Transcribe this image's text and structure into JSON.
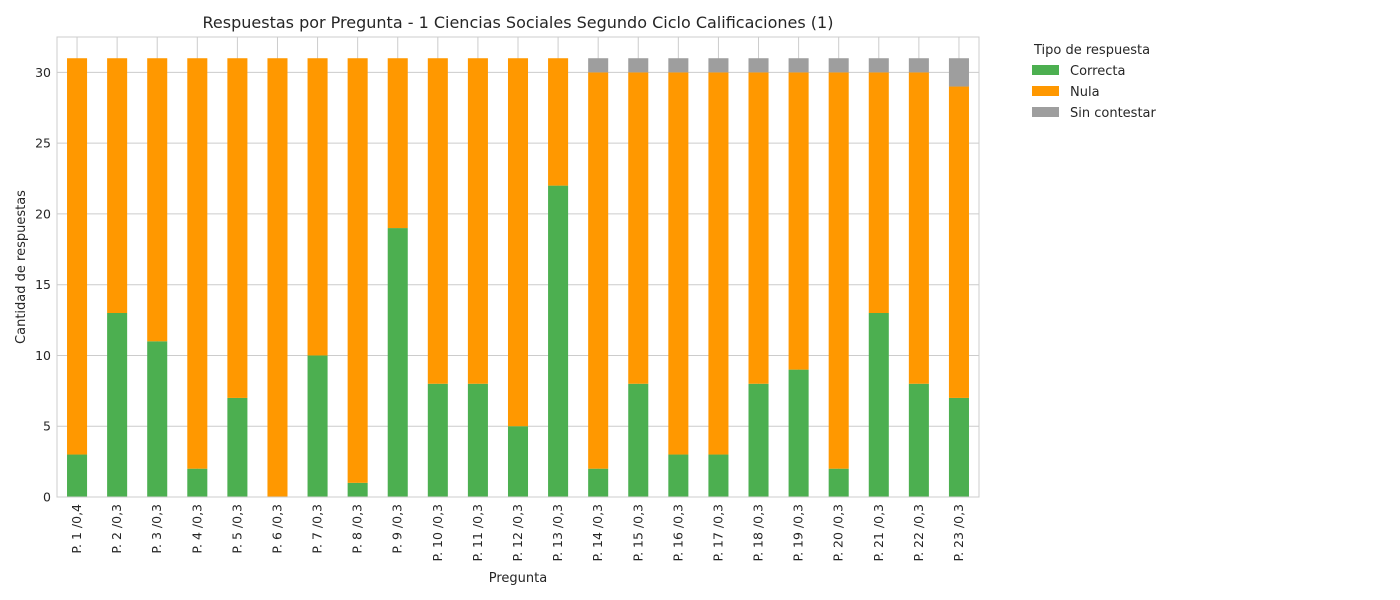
{
  "chart_data": {
    "type": "bar",
    "stacked": true,
    "title": "Respuestas por Pregunta - 1   Ciencias Sociales Segundo Ciclo Calificaciones (1)",
    "xlabel": "Pregunta",
    "ylabel": "Cantidad de respuestas",
    "ylim": [
      0,
      32.5
    ],
    "yticks": [
      0,
      5,
      10,
      15,
      20,
      25,
      30
    ],
    "grid": true,
    "legend": {
      "title": "Tipo de respuesta",
      "placement": "outside-top-right"
    },
    "categories": [
      "P. 1 /0,4",
      "P. 2 /0,3",
      "P. 3 /0,3",
      "P. 4 /0,3",
      "P. 5 /0,3",
      "P. 6 /0,3",
      "P. 7 /0,3",
      "P. 8 /0,3",
      "P. 9 /0,3",
      "P. 10 /0,3",
      "P. 11 /0,3",
      "P. 12 /0,3",
      "P. 13 /0,3",
      "P. 14 /0,3",
      "P. 15 /0,3",
      "P. 16 /0,3",
      "P. 17 /0,3",
      "P. 18 /0,3",
      "P. 19 /0,3",
      "P. 20 /0,3",
      "P. 21 /0,3",
      "P. 22 /0,3",
      "P. 23 /0,3"
    ],
    "series": [
      {
        "name": "Correcta",
        "color": "#4caf50",
        "values": [
          3,
          13,
          11,
          2,
          7,
          0,
          10,
          1,
          19,
          8,
          8,
          5,
          22,
          2,
          8,
          3,
          3,
          8,
          9,
          2,
          13,
          8,
          7
        ]
      },
      {
        "name": "Nula",
        "color": "#ff9800",
        "values": [
          28,
          18,
          20,
          29,
          24,
          31,
          21,
          30,
          12,
          23,
          23,
          26,
          9,
          28,
          22,
          27,
          27,
          22,
          21,
          28,
          17,
          22,
          22
        ]
      },
      {
        "name": "Sin contestar",
        "color": "#9e9e9e",
        "values": [
          0,
          0,
          0,
          0,
          0,
          0,
          0,
          0,
          0,
          0,
          0,
          0,
          0,
          1,
          1,
          1,
          1,
          1,
          1,
          1,
          1,
          1,
          2
        ]
      }
    ]
  }
}
